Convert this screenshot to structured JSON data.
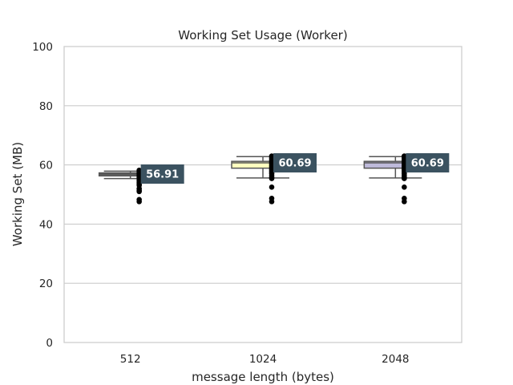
{
  "chart_data": {
    "type": "box",
    "title": "Working Set Usage (Worker)",
    "xlabel": "message length (bytes)",
    "ylabel": "Working Set (MB)",
    "ylim": [
      0,
      100
    ],
    "yticks": [
      0,
      20,
      40,
      60,
      80,
      100
    ],
    "grid": true,
    "categories": [
      "512",
      "1024",
      "2048"
    ],
    "boxes": [
      {
        "category": "512",
        "q1": 56.3,
        "median": 56.9,
        "q3": 57.3,
        "whisker_low": 55.4,
        "whisker_high": 57.9,
        "color": "#6e6e6e",
        "outliers": [
          58.2,
          57.8,
          57.4,
          57.0,
          56.6,
          56.2,
          55.8,
          55.3,
          54.9,
          54.5,
          54.0,
          53.6,
          53.1,
          52.0,
          51.4,
          51.0,
          48.3,
          47.6
        ],
        "label": "56.91"
      },
      {
        "category": "1024",
        "q1": 58.9,
        "median": 60.7,
        "q3": 61.2,
        "whisker_low": 55.6,
        "whisker_high": 62.8,
        "color": "#ffffbf",
        "outliers": [
          63.0,
          62.6,
          62.2,
          61.8,
          61.4,
          61.0,
          60.6,
          60.2,
          59.8,
          59.4,
          59.0,
          58.6,
          58.2,
          57.8,
          57.4,
          57.0,
          56.4,
          55.8,
          55.4,
          52.5,
          48.7,
          47.6
        ],
        "label": "60.69"
      },
      {
        "category": "2048",
        "q1": 58.9,
        "median": 60.7,
        "q3": 61.2,
        "whisker_low": 55.6,
        "whisker_high": 62.8,
        "color": "#bebada",
        "outliers": [
          63.0,
          62.6,
          62.2,
          61.8,
          61.4,
          61.0,
          60.6,
          60.2,
          59.8,
          59.4,
          59.0,
          58.6,
          58.2,
          57.8,
          57.4,
          57.0,
          56.4,
          55.8,
          55.4,
          52.5,
          48.7,
          47.6
        ],
        "label": "60.69"
      }
    ],
    "label_box_color": "#3b5260",
    "box_edge_color": "#555555"
  }
}
